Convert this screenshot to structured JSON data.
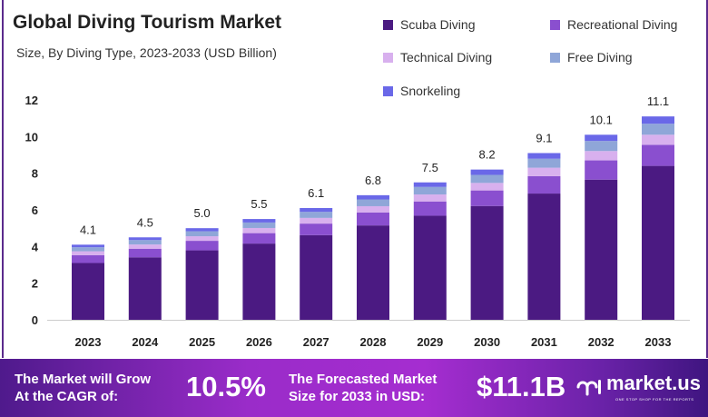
{
  "chart_data": {
    "type": "bar",
    "stacked": true,
    "title": "Global Diving Tourism Market",
    "subtitle": "Size, By Diving Type, 2023-2033 (USD Billion)",
    "categories": [
      "2023",
      "2024",
      "2025",
      "2026",
      "2027",
      "2028",
      "2029",
      "2030",
      "2031",
      "2032",
      "2033"
    ],
    "totals": [
      "4.1",
      "4.5",
      "5.0",
      "5.5",
      "6.1",
      "6.8",
      "7.5",
      "8.2",
      "9.1",
      "10.1",
      "11.1"
    ],
    "series": [
      {
        "name": "Scuba Diving",
        "color": "#4b1a82",
        "values": [
          3.1,
          3.41,
          3.79,
          4.16,
          4.62,
          5.15,
          5.68,
          6.21,
          6.89,
          7.65,
          8.4
        ]
      },
      {
        "name": "Recreational Diving",
        "color": "#8a4fcf",
        "values": [
          0.43,
          0.47,
          0.52,
          0.57,
          0.63,
          0.71,
          0.78,
          0.85,
          0.95,
          1.05,
          1.15
        ]
      },
      {
        "name": "Technical Diving",
        "color": "#d8b0ee",
        "values": [
          0.21,
          0.23,
          0.25,
          0.28,
          0.31,
          0.34,
          0.38,
          0.41,
          0.46,
          0.51,
          0.55
        ]
      },
      {
        "name": "Free Diving",
        "color": "#8fa6d8",
        "values": [
          0.22,
          0.24,
          0.27,
          0.3,
          0.33,
          0.37,
          0.41,
          0.44,
          0.49,
          0.55,
          0.6
        ]
      },
      {
        "name": "Snorkeling",
        "color": "#6a68e8",
        "values": [
          0.14,
          0.15,
          0.17,
          0.19,
          0.21,
          0.23,
          0.25,
          0.29,
          0.31,
          0.34,
          0.4
        ]
      }
    ],
    "yticks": [
      "0",
      "2",
      "4",
      "6",
      "8",
      "10",
      "12"
    ],
    "ylim": [
      0,
      12
    ],
    "grid": false,
    "legend": "top-right"
  },
  "banner": {
    "cagr_label": [
      "The Market will Grow",
      "At the CAGR of:"
    ],
    "cagr_value": "10.5%",
    "forecast_label": [
      "The Forecasted Market",
      "Size for 2033 in USD:"
    ],
    "forecast_value": "$11.1B",
    "brand": "market.us",
    "tagline": "ONE STOP SHOP FOR THE REPORTS"
  }
}
